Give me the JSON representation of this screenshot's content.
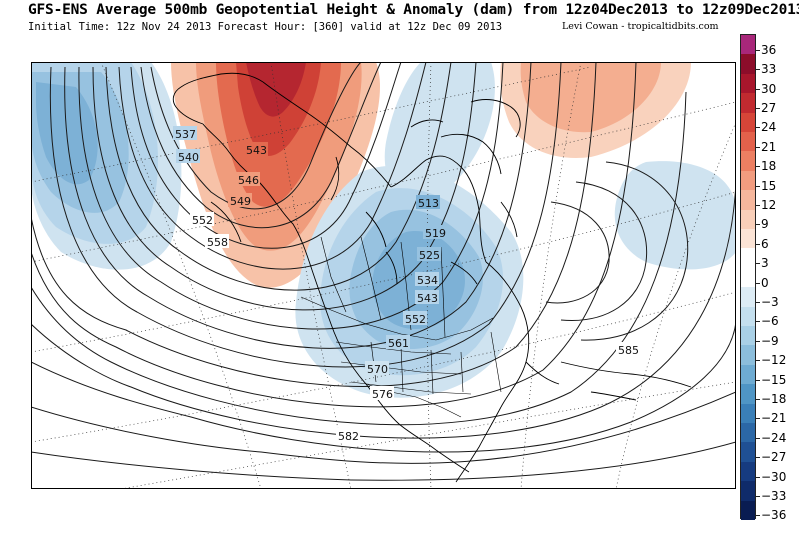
{
  "header": {
    "title": "GFS-ENS Average 500mb Geopotential Height & Anomaly (dam) from 12z04Dec2013 to 12z09Dec2013",
    "subtitle": "Initial Time: 12z Nov 24 2013 Forecast Hour: [360] valid at 12z Dec 09 2013",
    "credit": "Levi Cowan - tropicaltidbits.com"
  },
  "map": {
    "region": "North America and North Pacific",
    "contour_labels": [
      "537",
      "540",
      "543",
      "546",
      "549",
      "552",
      "558",
      "513",
      "519",
      "525",
      "534",
      "543",
      "552",
      "561",
      "570",
      "576",
      "582",
      "585"
    ],
    "anomaly_colors": {
      "warm": "#d9462e",
      "cool": "#6aa3cf"
    }
  },
  "colorbar": {
    "labels": [
      "36",
      "33",
      "30",
      "27",
      "24",
      "21",
      "18",
      "15",
      "12",
      "9",
      "6",
      "3",
      "0",
      "−3",
      "−6",
      "−9",
      "−12",
      "−15",
      "−18",
      "−21",
      "−24",
      "−27",
      "−30",
      "−33",
      "−36"
    ],
    "colors": [
      "#a8277a",
      "#8c0d2a",
      "#a8162c",
      "#c12a30",
      "#d64538",
      "#e3614b",
      "#ec7f62",
      "#f29c7f",
      "#f6b79d",
      "#f9cfb9",
      "#fce4d6",
      "#ffffff",
      "#ffffff",
      "#ddecf5",
      "#c4dfee",
      "#a9d0e6",
      "#8cbedc",
      "#6eabd2",
      "#4f95c5",
      "#3a7fb8",
      "#2b67a6",
      "#1f5094",
      "#163b80",
      "#0f2b6a",
      "#091c52"
    ]
  }
}
